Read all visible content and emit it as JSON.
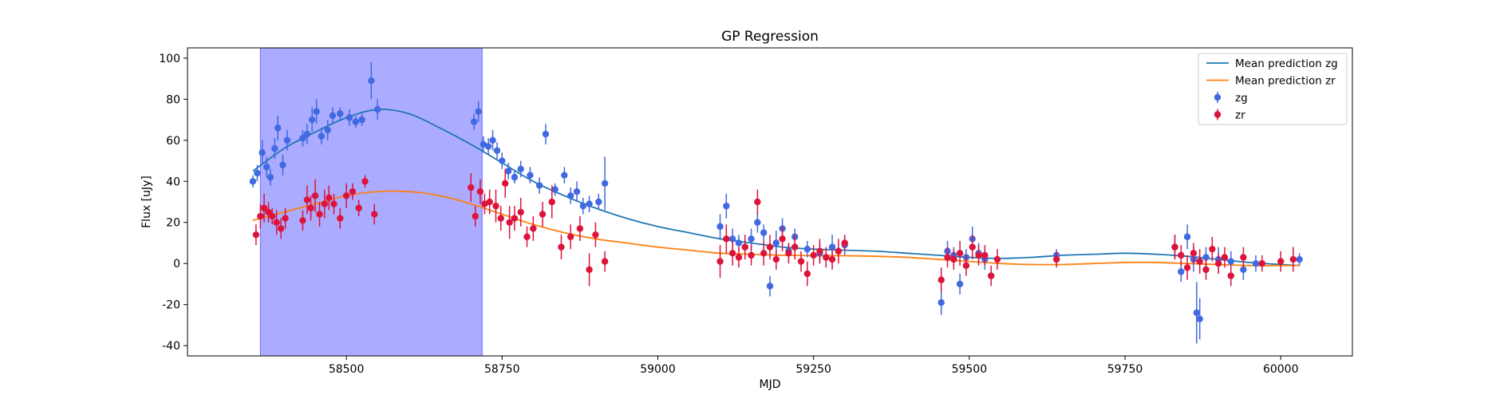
{
  "chart_data": {
    "type": "scatter",
    "title": "GP Regression",
    "xlabel": "MJD",
    "ylabel": "Flux [uJy]",
    "xlim": [
      58245,
      60115
    ],
    "ylim": [
      -45,
      105
    ],
    "xticks": [
      58500,
      58750,
      59000,
      59250,
      59500,
      59750,
      60000
    ],
    "yticks": [
      -40,
      -20,
      0,
      20,
      40,
      60,
      80,
      100
    ],
    "grid": false,
    "legend_position": "top-right",
    "highlight_span": {
      "x0": 58362,
      "x1": 58718,
      "color": "#0000ff",
      "opacity": 0.33
    },
    "series": [
      {
        "name": "Mean prediction zg",
        "kind": "line",
        "color": "#1f77b4",
        "x": [
          58350,
          58400,
          58450,
          58500,
          58550,
          58600,
          58650,
          58700,
          58750,
          58800,
          58850,
          58900,
          58950,
          59000,
          59050,
          59100,
          59150,
          59200,
          59250,
          59300,
          59350,
          59400,
          59450,
          59500,
          59550,
          59600,
          59650,
          59700,
          59750,
          59800,
          59850,
          59900,
          59950,
          60000,
          60030
        ],
        "y": [
          45,
          56,
          64,
          71,
          75,
          73,
          66,
          58,
          49,
          40,
          33,
          27,
          22,
          18,
          15,
          12,
          10,
          8,
          7,
          6.5,
          6,
          5,
          4,
          3,
          2.5,
          3,
          4,
          4.5,
          5,
          4.5,
          3.5,
          2,
          0.5,
          -0.5,
          -1
        ]
      },
      {
        "name": "Mean prediction zr",
        "kind": "line",
        "color": "#ff7f0e",
        "x": [
          58350,
          58400,
          58450,
          58500,
          58550,
          58600,
          58650,
          58700,
          58750,
          58800,
          58850,
          58900,
          58950,
          59000,
          59050,
          59100,
          59150,
          59200,
          59250,
          59300,
          59350,
          59400,
          59450,
          59500,
          59550,
          59600,
          59650,
          59700,
          59750,
          59800,
          59850,
          59900,
          59950,
          60000,
          60030
        ],
        "y": [
          21,
          25,
          29,
          33,
          35,
          35,
          33,
          29,
          24,
          19,
          15,
          12,
          10,
          8,
          6.5,
          5,
          4.5,
          4,
          3.8,
          3.8,
          3.5,
          3,
          2,
          1,
          0,
          -0.5,
          -0.5,
          0,
          0.5,
          0.5,
          0,
          -0.5,
          -1,
          -1,
          -1
        ]
      },
      {
        "name": "zg",
        "kind": "errorbar",
        "color": "#4169e1",
        "x": [
          58350,
          58357,
          58365,
          58372,
          58378,
          58385,
          58390,
          58398,
          58405,
          58430,
          58437,
          58445,
          58452,
          58460,
          58470,
          58478,
          58490,
          58505,
          58515,
          58525,
          58540,
          58550,
          58705,
          58712,
          58720,
          58728,
          58735,
          58742,
          58750,
          58760,
          58770,
          58780,
          58795,
          58810,
          58820,
          58835,
          58850,
          58860,
          58870,
          58880,
          58890,
          58905,
          58915,
          59100,
          59110,
          59120,
          59130,
          59140,
          59150,
          59160,
          59170,
          59180,
          59190,
          59200,
          59210,
          59220,
          59240,
          59260,
          59280,
          59300,
          59455,
          59465,
          59475,
          59485,
          59495,
          59505,
          59515,
          59525,
          59640,
          59830,
          59840,
          59850,
          59860,
          59865,
          59870,
          59880,
          59900,
          59920,
          59940,
          59960,
          60030
        ],
        "y": [
          40,
          44,
          54,
          47,
          42,
          56,
          66,
          48,
          60,
          61,
          63,
          70,
          74,
          62,
          65,
          72,
          73,
          71,
          69,
          70,
          89,
          75,
          69,
          74,
          58,
          57,
          60,
          55,
          50,
          45,
          42,
          46,
          43,
          38,
          63,
          36,
          43,
          33,
          35,
          28,
          29,
          30,
          39,
          18,
          28,
          12,
          10,
          8,
          12,
          20,
          15,
          -11,
          10,
          17,
          6,
          13,
          7,
          5,
          8,
          9,
          -19,
          6,
          4,
          -10,
          3,
          12,
          5,
          2,
          4,
          8,
          -4,
          13,
          2,
          -24,
          -27,
          3,
          2,
          1,
          -3,
          0,
          2
        ],
        "err": [
          3,
          4,
          6,
          5,
          4,
          5,
          6,
          5,
          5,
          4,
          5,
          6,
          6,
          4,
          5,
          4,
          3,
          4,
          3,
          3,
          9,
          5,
          4,
          5,
          4,
          4,
          5,
          4,
          4,
          4,
          3,
          4,
          4,
          4,
          5,
          3,
          4,
          4,
          5,
          4,
          4,
          4,
          13,
          6,
          6,
          5,
          4,
          4,
          5,
          5,
          4,
          5,
          6,
          5,
          4,
          4,
          4,
          5,
          6,
          5,
          6,
          5,
          4,
          5,
          4,
          6,
          5,
          5,
          3,
          6,
          5,
          6,
          6,
          15,
          10,
          5,
          6,
          5,
          5,
          4,
          3
        ]
      },
      {
        "name": "zr",
        "kind": "errorbar",
        "color": "#dc143c",
        "x": [
          58355,
          58362,
          58368,
          58375,
          58381,
          58388,
          58395,
          58402,
          58430,
          58437,
          58443,
          58450,
          58457,
          58465,
          58472,
          58480,
          58490,
          58500,
          58510,
          58520,
          58530,
          58545,
          58700,
          58707,
          58715,
          58722,
          58730,
          58740,
          58748,
          58755,
          58762,
          58770,
          58780,
          58790,
          58800,
          58815,
          58830,
          58845,
          58860,
          58875,
          58890,
          58900,
          58915,
          59100,
          59110,
          59120,
          59130,
          59140,
          59150,
          59160,
          59170,
          59180,
          59190,
          59200,
          59210,
          59220,
          59230,
          59240,
          59250,
          59260,
          59270,
          59280,
          59290,
          59300,
          59455,
          59465,
          59475,
          59485,
          59495,
          59505,
          59515,
          59525,
          59535,
          59545,
          59640,
          59830,
          59840,
          59850,
          59860,
          59870,
          59880,
          59890,
          59900,
          59910,
          59920,
          59940,
          59970,
          60000,
          60020
        ],
        "y": [
          14,
          23,
          27,
          25,
          23,
          20,
          17,
          22,
          21,
          31,
          27,
          33,
          24,
          29,
          32,
          29,
          22,
          33,
          35,
          27,
          40,
          24,
          37,
          23,
          35,
          29,
          30,
          28,
          22,
          39,
          20,
          22,
          25,
          13,
          17,
          24,
          30,
          8,
          13,
          17,
          -3,
          14,
          1,
          1,
          12,
          5,
          3,
          8,
          4,
          30,
          5,
          8,
          2,
          12,
          5,
          8,
          1,
          -5,
          4,
          6,
          3,
          2,
          6,
          10,
          -8,
          3,
          2,
          5,
          -1,
          8,
          4,
          4,
          -6,
          2,
          2,
          8,
          4,
          -2,
          5,
          1,
          -3,
          7,
          0,
          3,
          -6,
          3,
          0,
          1,
          2
        ],
        "err": [
          5,
          6,
          7,
          5,
          4,
          6,
          5,
          5,
          5,
          7,
          6,
          8,
          6,
          7,
          6,
          5,
          5,
          6,
          4,
          4,
          3,
          5,
          7,
          5,
          6,
          5,
          6,
          8,
          6,
          7,
          8,
          6,
          7,
          5,
          6,
          6,
          8,
          6,
          6,
          6,
          8,
          6,
          5,
          8,
          7,
          6,
          5,
          6,
          5,
          6,
          6,
          6,
          5,
          6,
          5,
          6,
          5,
          6,
          5,
          6,
          5,
          5,
          6,
          4,
          6,
          5,
          5,
          6,
          5,
          6,
          5,
          5,
          5,
          5,
          4,
          6,
          5,
          6,
          5,
          6,
          5,
          6,
          5,
          5,
          5,
          5,
          4,
          5,
          6
        ]
      }
    ]
  }
}
